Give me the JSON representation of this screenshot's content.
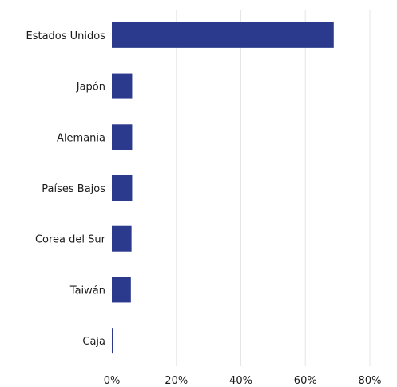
{
  "chart_data": {
    "type": "bar",
    "orientation": "horizontal",
    "categories": [
      "Estados Unidos",
      "Japón",
      "Alemania",
      "Países Bajos",
      "Corea del Sur",
      "Taiwán",
      "Caja"
    ],
    "values": [
      68.8,
      6.3,
      6.3,
      6.3,
      6.1,
      5.9,
      0.2
    ],
    "xlim": [
      0,
      80
    ],
    "xticks": [
      0,
      20,
      40,
      60,
      80
    ],
    "tick_labels": [
      "0%",
      "20%",
      "40%",
      "60%",
      "80%"
    ],
    "bar_color": "#2b3a8c",
    "grid": true
  }
}
